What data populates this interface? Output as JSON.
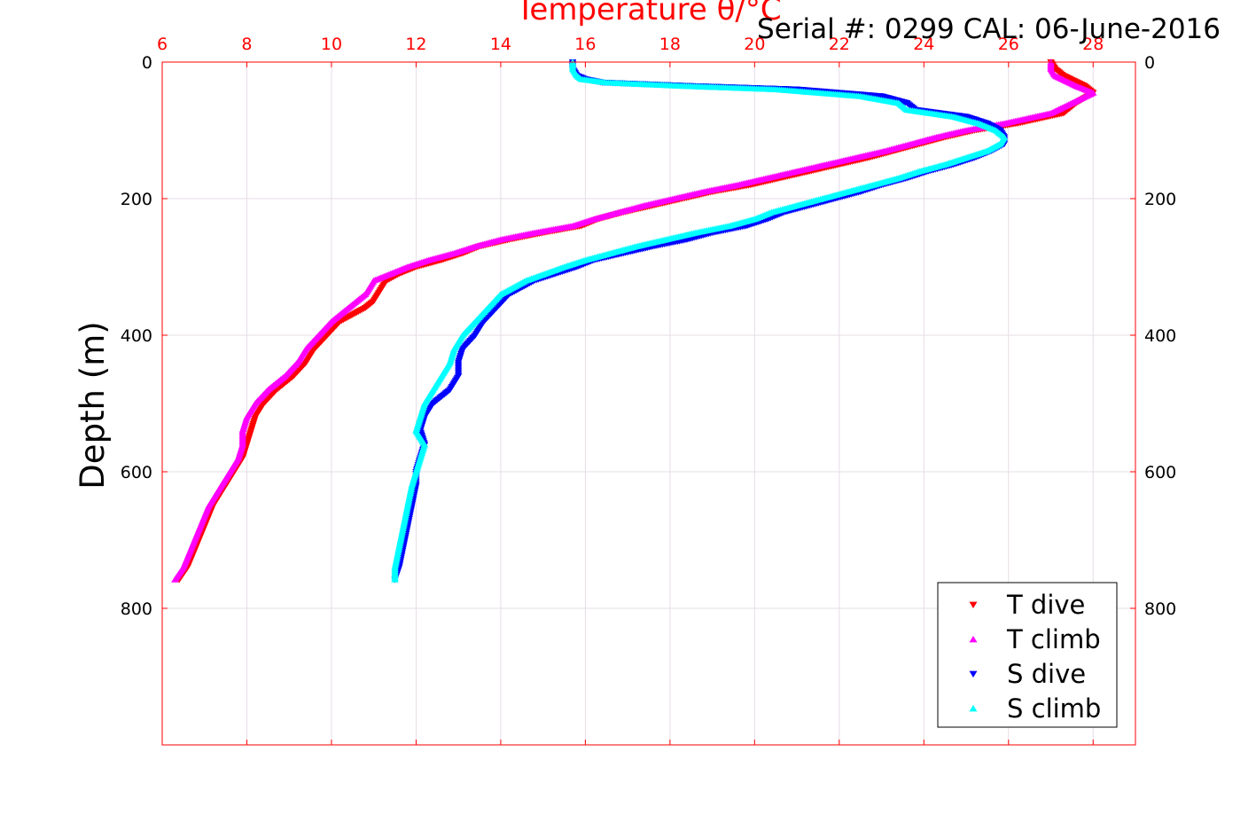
{
  "chart_data": {
    "type": "scatter",
    "title": "Temperature θ/°C",
    "subtitle": "Serial #: 0299 CAL: 06-June-2016",
    "xlabel": "Temperature θ/°C",
    "ylabel": "Depth (m)",
    "xlim": [
      6,
      29
    ],
    "ylim": [
      1000,
      0
    ],
    "x_ticks": [
      "6",
      "8",
      "10",
      "12",
      "14",
      "16",
      "18",
      "20",
      "22",
      "24",
      "26",
      "28"
    ],
    "y_ticks": [
      "0",
      "200",
      "400",
      "600",
      "800"
    ],
    "x_tick_values": [
      6,
      8,
      10,
      12,
      14,
      16,
      18,
      20,
      22,
      24,
      26,
      28
    ],
    "y_tick_values": [
      0,
      200,
      400,
      600,
      800
    ],
    "grid": true,
    "legend_position": "bottom-right",
    "colors": {
      "axis": "#ff0000",
      "grid": "#e6dde6"
    },
    "series": [
      {
        "name": "T dive",
        "marker": "triangle-down",
        "color": "#ff0000",
        "depth": [
          0,
          10,
          20,
          35,
          45,
          60,
          75,
          90,
          100,
          110,
          120,
          130,
          140,
          150,
          160,
          170,
          180,
          190,
          200,
          210,
          220,
          230,
          240,
          250,
          260,
          270,
          280,
          290,
          300,
          310,
          320,
          330,
          340,
          350,
          360,
          380,
          400,
          420,
          440,
          460,
          480,
          500,
          520,
          540,
          560,
          580,
          600,
          620,
          650,
          680,
          710,
          740,
          758
        ],
        "values": [
          27.0,
          27.1,
          27.3,
          27.8,
          28.0,
          27.6,
          27.3,
          26.2,
          25.2,
          24.5,
          23.9,
          23.3,
          22.7,
          22.0,
          21.3,
          20.6,
          19.9,
          19.0,
          18.3,
          17.6,
          16.9,
          16.3,
          15.9,
          15.0,
          14.2,
          13.5,
          13.1,
          12.6,
          12.0,
          11.6,
          11.3,
          11.2,
          11.1,
          11.0,
          10.8,
          10.2,
          9.9,
          9.6,
          9.4,
          9.1,
          8.7,
          8.4,
          8.2,
          8.1,
          8.0,
          7.9,
          7.7,
          7.5,
          7.2,
          7.0,
          6.8,
          6.6,
          6.4
        ]
      },
      {
        "name": "T climb",
        "marker": "triangle-up",
        "color": "#ff00ff",
        "depth": [
          0,
          10,
          20,
          35,
          45,
          60,
          75,
          90,
          100,
          110,
          120,
          130,
          140,
          150,
          160,
          170,
          180,
          190,
          200,
          210,
          220,
          230,
          240,
          250,
          260,
          270,
          280,
          290,
          300,
          310,
          320,
          330,
          340,
          350,
          360,
          380,
          400,
          420,
          440,
          460,
          480,
          500,
          520,
          540,
          560,
          580,
          600,
          620,
          650,
          680,
          710,
          740,
          758
        ],
        "values": [
          27.0,
          27.0,
          27.1,
          27.6,
          28.0,
          27.5,
          27.0,
          25.9,
          25.0,
          24.3,
          23.7,
          23.1,
          22.4,
          21.7,
          21.0,
          20.3,
          19.6,
          18.8,
          18.1,
          17.4,
          16.8,
          16.2,
          15.7,
          14.8,
          14.0,
          13.4,
          12.9,
          12.3,
          11.8,
          11.4,
          11.0,
          10.9,
          10.8,
          10.6,
          10.4,
          10.0,
          9.7,
          9.4,
          9.2,
          8.9,
          8.5,
          8.2,
          8.0,
          7.9,
          7.9,
          7.8,
          7.6,
          7.4,
          7.1,
          6.9,
          6.7,
          6.5,
          6.3
        ]
      },
      {
        "name": "S dive",
        "marker": "triangle-down",
        "color": "#0000ff",
        "depth": [
          0,
          10,
          20,
          25,
          30,
          35,
          40,
          50,
          60,
          70,
          80,
          90,
          100,
          110,
          120,
          130,
          140,
          150,
          160,
          170,
          180,
          190,
          200,
          210,
          220,
          230,
          240,
          250,
          260,
          270,
          280,
          290,
          300,
          320,
          340,
          360,
          380,
          400,
          420,
          440,
          460,
          480,
          500,
          520,
          540,
          560,
          580,
          600,
          620,
          650,
          680,
          710,
          740,
          758
        ],
        "values": [
          15.7,
          15.7,
          15.8,
          16.0,
          16.4,
          18.5,
          21.0,
          23.0,
          23.6,
          23.8,
          25.0,
          25.5,
          25.8,
          25.9,
          25.9,
          25.6,
          25.2,
          24.7,
          24.1,
          23.6,
          23.0,
          22.5,
          21.9,
          21.3,
          20.7,
          20.3,
          19.8,
          19.0,
          18.4,
          17.6,
          16.9,
          16.2,
          15.8,
          14.8,
          14.2,
          13.9,
          13.6,
          13.4,
          13.1,
          13.0,
          13.0,
          12.8,
          12.4,
          12.2,
          12.1,
          12.2,
          12.1,
          12.0,
          12.0,
          11.9,
          11.8,
          11.7,
          11.6,
          11.5
        ]
      },
      {
        "name": "S climb",
        "marker": "triangle-up",
        "color": "#00ffff",
        "depth": [
          0,
          10,
          20,
          25,
          30,
          35,
          40,
          50,
          60,
          70,
          80,
          90,
          100,
          110,
          120,
          130,
          140,
          150,
          160,
          170,
          180,
          190,
          200,
          210,
          220,
          230,
          240,
          250,
          260,
          270,
          280,
          290,
          300,
          320,
          340,
          360,
          380,
          400,
          420,
          440,
          460,
          480,
          500,
          520,
          540,
          560,
          580,
          600,
          620,
          650,
          680,
          710,
          740,
          758
        ],
        "values": [
          15.7,
          15.7,
          15.8,
          15.9,
          16.5,
          18.3,
          20.5,
          22.5,
          23.4,
          23.6,
          24.7,
          25.3,
          25.7,
          25.9,
          25.8,
          25.5,
          25.0,
          24.5,
          23.9,
          23.4,
          22.8,
          22.2,
          21.6,
          21.0,
          20.4,
          20.0,
          19.4,
          18.6,
          17.9,
          17.2,
          16.6,
          16.0,
          15.5,
          14.6,
          14.0,
          13.7,
          13.4,
          13.1,
          12.9,
          12.8,
          12.6,
          12.4,
          12.2,
          12.1,
          12.0,
          12.2,
          12.1,
          12.0,
          11.9,
          11.8,
          11.7,
          11.6,
          11.5,
          11.5
        ]
      }
    ]
  }
}
